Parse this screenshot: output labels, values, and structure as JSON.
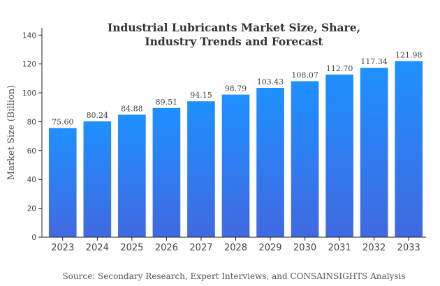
{
  "chart_data": {
    "type": "bar",
    "title_line1": "Industrial Lubricants Market Size, Share,",
    "title_line2": "Industry Trends and Forecast",
    "ylabel": "Market Size (Billion)",
    "xlabel": "",
    "categories": [
      "2023",
      "2024",
      "2025",
      "2026",
      "2027",
      "2028",
      "2029",
      "2030",
      "2031",
      "2032",
      "2033"
    ],
    "values": [
      75.6,
      80.24,
      84.88,
      89.51,
      94.15,
      98.79,
      103.43,
      108.07,
      112.7,
      117.34,
      121.98
    ],
    "value_labels": [
      "75.60",
      "80.24",
      "84.88",
      "89.51",
      "94.15",
      "98.79",
      "103.43",
      "108.07",
      "112.70",
      "117.34",
      "121.98"
    ],
    "ylim": [
      0,
      145
    ],
    "yticks": [
      0,
      20,
      40,
      60,
      80,
      100,
      120,
      140
    ],
    "grid": false,
    "legend": "none",
    "bar_gradient_top": "#1e90ff",
    "bar_gradient_bottom": "#4169e1",
    "source": "Source: Secondary Research, Expert Interviews, and CONSAINSIGHTS Analysis"
  }
}
